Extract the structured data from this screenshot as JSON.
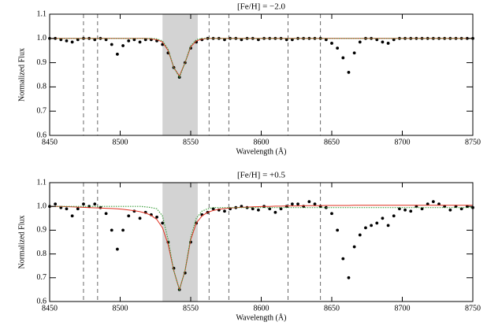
{
  "chart_data": [
    {
      "type": "line",
      "title": "[Fe/H] = −2.0",
      "x_label": "Wavelength (Å)",
      "y_label": "Normalized Flux",
      "xlim": [
        8450,
        8750
      ],
      "xticks": [
        8450,
        8500,
        8550,
        8600,
        8650,
        8700,
        8750
      ],
      "ylim": [
        0.6,
        1.1
      ],
      "yticks": [
        0.6,
        0.7,
        0.8,
        0.9,
        {
          "value": 1,
          "label": "1.0"
        },
        1.1
      ],
      "shaded_region": [
        8530,
        8555
      ],
      "shade_color": "#d3d3d3",
      "vlines": [
        8474,
        8484,
        8563,
        8577,
        8619,
        8642
      ],
      "x": [
        8450,
        8454,
        8458,
        8462,
        8466,
        8470,
        8474,
        8478,
        8482,
        8486,
        8490,
        8494,
        8498,
        8502,
        8506,
        8510,
        8514,
        8518,
        8522,
        8526,
        8530,
        8534,
        8538,
        8542,
        8546,
        8550,
        8554,
        8558,
        8562,
        8566,
        8570,
        8574,
        8578,
        8582,
        8586,
        8590,
        8594,
        8598,
        8602,
        8606,
        8610,
        8614,
        8618,
        8622,
        8626,
        8630,
        8634,
        8638,
        8642,
        8646,
        8650,
        8654,
        8658,
        8662,
        8666,
        8670,
        8674,
        8678,
        8682,
        8686,
        8690,
        8694,
        8698,
        8702,
        8706,
        8710,
        8714,
        8718,
        8722,
        8726,
        8730,
        8734,
        8738,
        8742,
        8746,
        8750
      ],
      "series": [
        {
          "style": "dots",
          "color": "#000000",
          "values": [
            1.0,
            1.0,
            0.995,
            0.99,
            0.985,
            0.995,
            1.0,
            1.0,
            0.995,
            1.0,
            0.995,
            0.975,
            0.935,
            0.97,
            0.99,
            0.995,
            0.985,
            0.995,
            0.995,
            0.99,
            0.975,
            0.94,
            0.88,
            0.84,
            0.9,
            0.96,
            0.985,
            0.995,
            1.0,
            1.0,
            1.0,
            0.995,
            1.0,
            1.0,
            0.995,
            1.0,
            1.0,
            0.995,
            1.0,
            1.0,
            1.0,
            1.0,
            0.995,
            0.995,
            1.0,
            1.0,
            1.0,
            1.0,
            1.0,
            0.995,
            0.98,
            0.96,
            0.92,
            0.86,
            0.94,
            0.985,
            1.0,
            1.0,
            0.995,
            0.985,
            0.98,
            0.995,
            1.0,
            1.0,
            1.0,
            1.0,
            1.0,
            1.0,
            1.0,
            1.0,
            1.0,
            1.0,
            1.0,
            1.0,
            1.0,
            1.0
          ]
        },
        {
          "style": "line",
          "color": "#e03020",
          "values": [
            1.0,
            1.0,
            1.0,
            1.0,
            1.0,
            1.0,
            1.0,
            1.0,
            1.0,
            1.0,
            1.0,
            1.0,
            1.0,
            1.0,
            1.0,
            1.0,
            1.0,
            1.0,
            0.998,
            0.995,
            0.985,
            0.95,
            0.88,
            0.845,
            0.9,
            0.965,
            0.99,
            0.997,
            1.0,
            1.0,
            1.0,
            1.0,
            1.0,
            1.0,
            1.0,
            1.0,
            1.0,
            1.0,
            1.0,
            1.0,
            1.0,
            1.0,
            1.0,
            1.0,
            1.0,
            1.0,
            1.0,
            1.0,
            1.0,
            1.0,
            1.0,
            1.0,
            1.0,
            1.0,
            1.0,
            1.0,
            1.0,
            1.0,
            1.0,
            1.0,
            1.0,
            1.0,
            1.0,
            1.0,
            1.0,
            1.0,
            1.0,
            1.0,
            1.0,
            1.0,
            1.0,
            1.0,
            1.0,
            1.0,
            1.0,
            1.0
          ]
        },
        {
          "style": "dotted",
          "color": "#40a040",
          "values": [
            1.0,
            1.0,
            1.0,
            1.0,
            1.0,
            1.0,
            1.0,
            1.0,
            1.0,
            1.0,
            1.0,
            1.0,
            1.0,
            1.0,
            1.0,
            1.0,
            1.0,
            1.0,
            1.0,
            0.998,
            0.99,
            0.955,
            0.88,
            0.84,
            0.9,
            0.97,
            0.995,
            1.0,
            1.0,
            1.0,
            1.0,
            1.0,
            1.0,
            1.0,
            1.0,
            1.0,
            1.0,
            1.0,
            1.0,
            1.0,
            1.0,
            1.0,
            1.0,
            1.0,
            1.0,
            1.0,
            1.0,
            1.0,
            1.0,
            1.0,
            1.0,
            1.0,
            1.0,
            1.0,
            1.0,
            1.0,
            1.0,
            1.0,
            1.0,
            1.0,
            1.0,
            1.0,
            1.0,
            1.0,
            1.0,
            1.0,
            1.0,
            1.0,
            1.0,
            1.0,
            1.0,
            1.0,
            1.0,
            1.0,
            1.0,
            1.0
          ]
        }
      ]
    },
    {
      "type": "line",
      "title": "[Fe/H] = +0.5",
      "x_label": "Wavelength (Å)",
      "y_label": "Normalized Flux",
      "xlim": [
        8450,
        8750
      ],
      "xticks": [
        8450,
        8500,
        8550,
        8600,
        8650,
        8700,
        8750
      ],
      "ylim": [
        0.6,
        1.1
      ],
      "yticks": [
        0.6,
        0.7,
        0.8,
        0.9,
        {
          "value": 1,
          "label": "1.0"
        },
        1.1
      ],
      "shaded_region": [
        8530,
        8555
      ],
      "shade_color": "#d3d3d3",
      "vlines": [
        8474,
        8484,
        8563,
        8577,
        8619,
        8642
      ],
      "x": [
        8450,
        8454,
        8458,
        8462,
        8466,
        8470,
        8474,
        8478,
        8482,
        8486,
        8490,
        8494,
        8498,
        8502,
        8506,
        8510,
        8514,
        8518,
        8522,
        8526,
        8530,
        8534,
        8538,
        8542,
        8546,
        8550,
        8554,
        8558,
        8562,
        8566,
        8570,
        8574,
        8578,
        8582,
        8586,
        8590,
        8594,
        8598,
        8602,
        8606,
        8610,
        8614,
        8618,
        8622,
        8626,
        8630,
        8634,
        8638,
        8642,
        8646,
        8650,
        8654,
        8658,
        8662,
        8666,
        8670,
        8674,
        8678,
        8682,
        8686,
        8690,
        8694,
        8698,
        8702,
        8706,
        8710,
        8714,
        8718,
        8722,
        8726,
        8730,
        8734,
        8738,
        8742,
        8746,
        8750
      ],
      "series": [
        {
          "style": "dots",
          "color": "#000000",
          "values": [
            1.0,
            1.01,
            0.995,
            0.99,
            0.96,
            0.99,
            1.01,
            1.0,
            1.01,
            0.995,
            0.97,
            0.9,
            0.82,
            0.9,
            0.96,
            0.98,
            0.95,
            0.975,
            0.965,
            0.955,
            0.93,
            0.85,
            0.74,
            0.65,
            0.72,
            0.85,
            0.93,
            0.965,
            0.975,
            0.99,
            0.985,
            0.98,
            0.99,
            0.995,
            1.0,
            0.995,
            0.99,
            0.985,
            1.0,
            0.99,
            0.975,
            0.99,
            1.0,
            1.01,
            1.01,
            1.0,
            1.02,
            1.01,
            1.0,
            0.995,
            0.97,
            0.9,
            0.78,
            0.7,
            0.83,
            0.88,
            0.91,
            0.92,
            0.93,
            0.95,
            0.92,
            0.96,
            0.99,
            0.985,
            0.98,
            1.0,
            0.99,
            1.01,
            1.02,
            1.01,
            1.0,
            0.985,
            1.0,
            0.99,
            1.0,
            0.995
          ]
        },
        {
          "style": "line",
          "color": "#e03020",
          "values": [
            1.0,
            1.0,
            1.0,
            0.999,
            0.998,
            0.997,
            0.996,
            0.995,
            0.994,
            0.993,
            0.992,
            0.991,
            0.99,
            0.988,
            0.985,
            0.982,
            0.978,
            0.972,
            0.962,
            0.945,
            0.91,
            0.84,
            0.73,
            0.65,
            0.73,
            0.86,
            0.93,
            0.96,
            0.975,
            0.983,
            0.988,
            0.991,
            0.993,
            0.995,
            0.996,
            0.997,
            0.998,
            0.999,
            1.0,
            1.0,
            1.001,
            1.001,
            1.002,
            1.002,
            1.002,
            1.003,
            1.003,
            1.003,
            1.003,
            1.004,
            1.004,
            1.004,
            1.004,
            1.004,
            1.005,
            1.005,
            1.005,
            1.005,
            1.005,
            1.005,
            1.005,
            1.005,
            1.005,
            1.005,
            1.005,
            1.005,
            1.005,
            1.005,
            1.005,
            1.005,
            1.005,
            1.005,
            1.005,
            1.005,
            1.005,
            1.005
          ]
        },
        {
          "style": "dotted",
          "color": "#40a040",
          "values": [
            1.0,
            1.0,
            1.0,
            1.0,
            1.0,
            1.0,
            1.0,
            1.0,
            1.0,
            1.0,
            1.0,
            1.0,
            1.0,
            1.0,
            1.0,
            1.0,
            1.0,
            0.998,
            0.995,
            0.99,
            0.96,
            0.86,
            0.73,
            0.65,
            0.73,
            0.87,
            0.95,
            0.98,
            0.99,
            0.995,
            0.995,
            0.995,
            0.995,
            0.995,
            0.995,
            0.995,
            0.995,
            0.995,
            0.995,
            0.995,
            0.995,
            0.995,
            0.995,
            0.995,
            0.995,
            0.995,
            0.995,
            0.995,
            0.995,
            0.995,
            0.995,
            0.995,
            0.995,
            0.995,
            0.995,
            0.995,
            0.995,
            0.995,
            0.995,
            0.995,
            0.995,
            0.995,
            0.995,
            0.995,
            0.995,
            0.995,
            0.995,
            0.995,
            0.995,
            0.995,
            0.995,
            0.995,
            0.995,
            0.995,
            0.995,
            0.995
          ]
        }
      ]
    }
  ]
}
